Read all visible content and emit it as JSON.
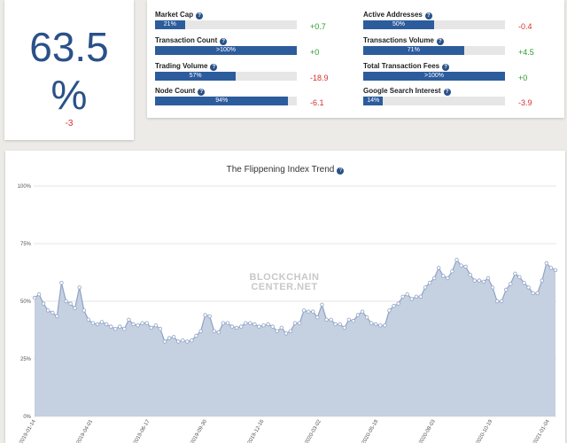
{
  "index": {
    "value": "63.5",
    "unit": "%",
    "change": "-3"
  },
  "help_glyph": "?",
  "metrics": [
    {
      "label": "Market Cap",
      "pct": 21,
      "pct_label": "21%",
      "change": "+0.7",
      "dir": "pos"
    },
    {
      "label": "Active Addresses",
      "pct": 50,
      "pct_label": "50%",
      "change": "-0.4",
      "dir": "neg"
    },
    {
      "label": "Transaction Count",
      "pct": 100,
      "pct_label": ">100%",
      "change": "+0",
      "dir": "pos"
    },
    {
      "label": "Transactions Volume",
      "pct": 71,
      "pct_label": "71%",
      "change": "+4.5",
      "dir": "pos"
    },
    {
      "label": "Trading Volume",
      "pct": 57,
      "pct_label": "57%",
      "change": "-18.9",
      "dir": "neg"
    },
    {
      "label": "Total Transaction Fees",
      "pct": 100,
      "pct_label": ">100%",
      "change": "+0",
      "dir": "pos"
    },
    {
      "label": "Node Count",
      "pct": 94,
      "pct_label": "94%",
      "change": "-6.1",
      "dir": "neg"
    },
    {
      "label": "Google Search Interest",
      "pct": 14,
      "pct_label": "14%",
      "change": "-3.9",
      "dir": "neg"
    }
  ],
  "watermark": {
    "line1": "BLOCKCHAIN",
    "line2": "CENTER.NET"
  },
  "chart_data": {
    "type": "area",
    "title": "The Flippening Index Trend",
    "xlabel": "",
    "ylabel": "",
    "ylim": [
      0,
      100
    ],
    "yticks": [
      "0%",
      "25%",
      "50%",
      "75%",
      "100%"
    ],
    "xticks": [
      "2019-01-14",
      "2019-04-01",
      "2019-06-17",
      "2019-09-30",
      "2019-12-16",
      "2020-03-02",
      "2020-05-18",
      "2020-08-03",
      "2020-10-19",
      "2021-01-04"
    ],
    "grid": true,
    "fill_color": "#c5d0e1",
    "line_color": "#8fa3c6",
    "values": [
      51.5,
      53,
      49,
      46,
      45,
      43.5,
      58,
      50,
      49,
      47,
      56,
      46,
      42,
      40.5,
      40,
      41,
      40,
      39,
      38,
      39,
      38,
      42,
      40,
      39.5,
      40.5,
      40.5,
      38.5,
      39.5,
      38,
      32.5,
      34,
      34.5,
      32.5,
      33,
      32.5,
      33,
      35,
      37,
      44,
      43.5,
      37,
      36.5,
      40.5,
      40.5,
      39,
      38.5,
      39,
      40.5,
      40.5,
      40,
      39,
      39.5,
      40,
      39,
      37,
      38.5,
      36,
      37,
      40.5,
      40.5,
      46,
      45.5,
      45.5,
      43,
      48.5,
      42,
      42,
      40,
      40,
      38.5,
      42,
      41.5,
      44,
      45.5,
      43,
      40.5,
      40,
      39.5,
      39.5,
      46,
      48,
      49,
      52,
      53,
      51,
      52,
      52,
      56,
      58,
      60,
      64.5,
      61,
      60,
      63,
      68,
      65.5,
      65,
      61.5,
      59,
      59,
      58.5,
      60,
      56,
      50,
      50,
      55,
      57.5,
      62,
      60.5,
      58,
      56,
      53.5,
      53.5,
      59,
      66.5,
      64.5,
      63.5
    ]
  }
}
